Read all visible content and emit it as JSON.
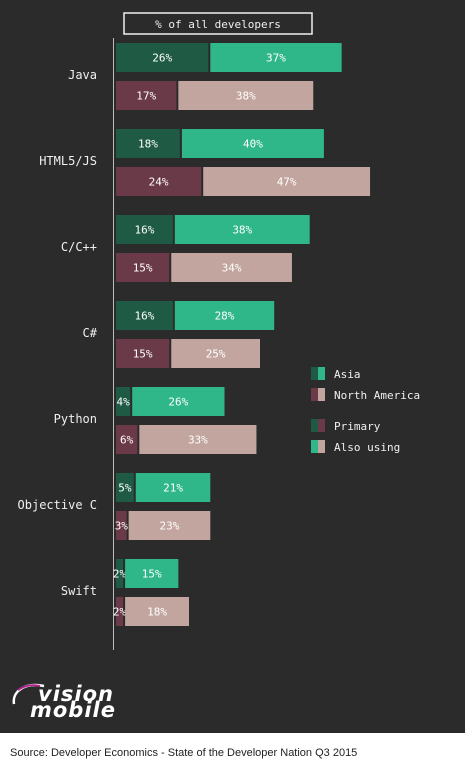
{
  "chart_data": {
    "type": "bar",
    "orientation": "horizontal-stacked",
    "header": "% of all developers",
    "categories": [
      "Java",
      "HTML5/JS",
      "C/C++",
      "C#",
      "Python",
      "Objective C",
      "Swift"
    ],
    "series": [
      {
        "name": "Asia",
        "primary": [
          26,
          18,
          16,
          16,
          4,
          5,
          2
        ],
        "also": [
          37,
          40,
          38,
          28,
          26,
          21,
          15
        ]
      },
      {
        "name": "North America",
        "primary": [
          17,
          24,
          15,
          15,
          6,
          3,
          2
        ],
        "also": [
          38,
          47,
          34,
          25,
          33,
          23,
          18
        ]
      }
    ],
    "legend": {
      "regions": [
        "Asia",
        "North America"
      ],
      "types": [
        "Primary",
        "Also using"
      ],
      "placement": "right"
    },
    "colors": {
      "asia_primary": "#1f5a45",
      "asia_also": "#2fb78a",
      "na_primary": "#6b3a48",
      "na_also": "#c2a59e"
    }
  },
  "brand": {
    "line1": "vision",
    "line2": "mobile"
  },
  "source": "Source: Developer Economics - State of the Developer Nation Q3 2015"
}
